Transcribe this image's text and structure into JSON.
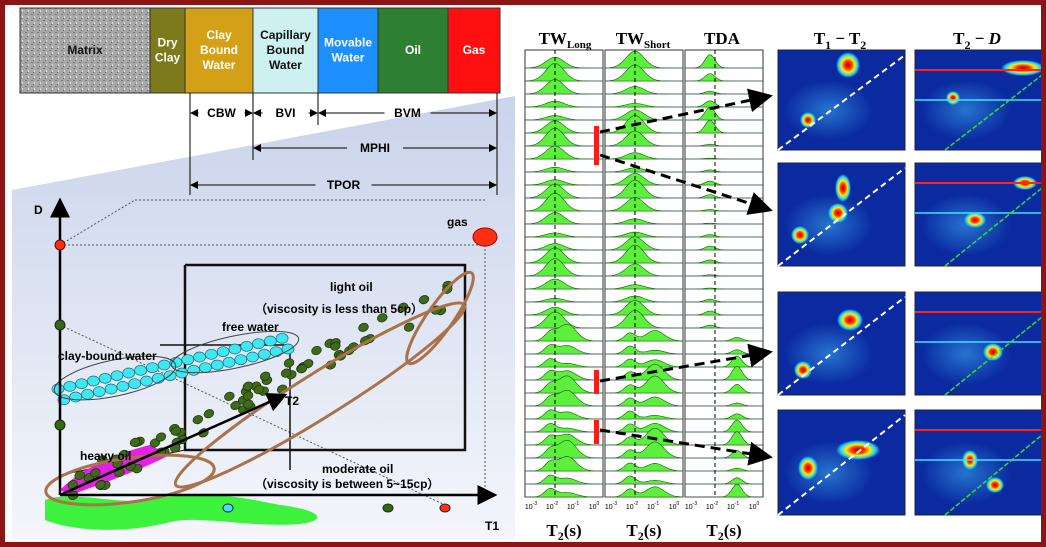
{
  "composition": [
    {
      "label": [
        "Matrix"
      ]
    },
    {
      "label": [
        "Dry",
        "Clay"
      ]
    },
    {
      "label": [
        "Clay",
        "Bound",
        "Water"
      ]
    },
    {
      "label": [
        "Capillary",
        "Bound",
        "Water"
      ]
    },
    {
      "label": [
        "Movable",
        "Water"
      ]
    },
    {
      "label": [
        "Oil"
      ]
    },
    {
      "label": [
        "Gas"
      ]
    }
  ],
  "porosity_terms": [
    "CBW",
    "BVI",
    "BVM",
    "MPHI",
    "TPOR"
  ],
  "diagram": {
    "y_axis": "D",
    "x_axis": "T1",
    "depth_axis": "T2",
    "gas": "gas",
    "light_oil": "light oil",
    "light_oil_note": "（viscosity is less than 5cp）",
    "free_water": "free water",
    "clay_bound_water": "clay-bound water",
    "heavy_oil": "heavy oil",
    "moderate_oil": "moderate oil",
    "moderate_oil_note": "（viscosity is between 5~15cp）"
  },
  "panels": {
    "headers": [
      {
        "main": "TW",
        "sub": "Long"
      },
      {
        "main": "TW",
        "sub": "Short"
      },
      {
        "main": "TDA"
      }
    ],
    "x_ticks": [
      {
        "base": "10",
        "exp": "-3"
      },
      {
        "base": "10",
        "exp": "-2"
      },
      {
        "base": "10",
        "exp": "-1"
      },
      {
        "base": "10",
        "exp": "0"
      }
    ],
    "x_label": {
      "main": "T",
      "sub": "2",
      "rest": "(s)"
    },
    "map_headers": [
      [
        {
          "text": "T"
        },
        {
          "text": "1",
          "sub": true
        },
        {
          "text": " − T"
        },
        {
          "text": "2",
          "sub": true
        }
      ],
      [
        {
          "text": "T"
        },
        {
          "text": "2",
          "sub": true
        },
        {
          "text": " − "
        },
        {
          "text": "D",
          "italic": true
        }
      ]
    ]
  }
}
